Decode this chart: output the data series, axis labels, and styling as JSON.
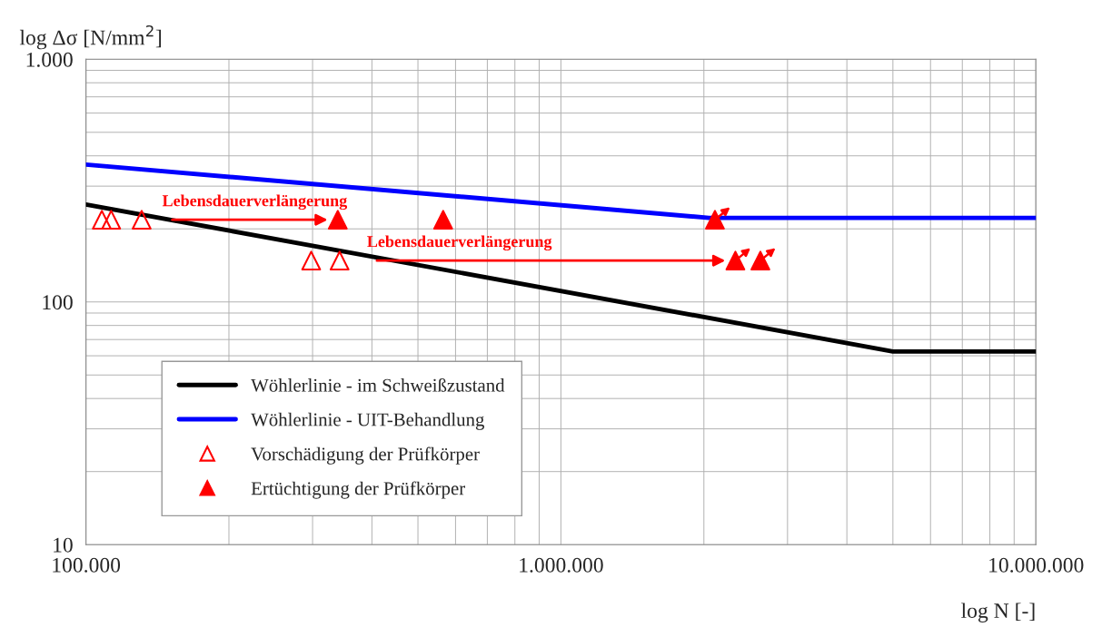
{
  "chart_data": {
    "type": "line",
    "xlabel": "log N [-]",
    "ylabel": "log Δσ [N/mm$^{2}$]",
    "log": "xy",
    "xlim": [
      100000,
      10000000
    ],
    "ylim": [
      10,
      1000
    ],
    "xticks": [
      {
        "value": 100000,
        "label": "100.000"
      },
      {
        "value": 1000000,
        "label": "1.000.000"
      },
      {
        "value": 10000000,
        "label": "10.000.000"
      }
    ],
    "yticks": [
      10,
      100,
      {
        "value": 1000,
        "label": "1.000"
      }
    ],
    "grid": true,
    "legend": "bottom left",
    "series": [
      {
        "name": "Wöhlerlinie - im Schweißzustand",
        "color": "#000000",
        "marker": "none",
        "x": [
          100000,
          5000000,
          10000000
        ],
        "values": [
          252,
          62.5,
          62.5
        ]
      },
      {
        "name": "Wöhlerlinie - UIT-Behandlung",
        "color": "#0000ff",
        "marker": "none",
        "x": [
          100000,
          2050000,
          10000000
        ],
        "values": [
          368,
          222,
          222
        ]
      },
      {
        "name": "Vorschädigung der Prüfkörper",
        "type": "scatter",
        "color": "#ff0000",
        "marker": "triangle-open",
        "x": [
          108000,
          113000,
          131000,
          298000,
          342000
        ],
        "values": [
          218,
          218,
          218,
          148,
          148
        ]
      },
      {
        "name": "Ertüchtigung der Prüfkörper",
        "type": "scatter",
        "color": "#ff0000",
        "marker": "triangle",
        "x": [
          339000,
          565000
        ],
        "values": [
          218,
          218
        ]
      },
      {
        "type": "scatter",
        "color": "#ff0000",
        "marker": "triangle-runout",
        "x": [
          2110000,
          2330000,
          2630000
        ],
        "values": [
          218,
          148,
          148
        ]
      }
    ],
    "annotations": [
      {
        "text": "Lebensdauerverlängerung",
        "x": 152000,
        "y": 218
      },
      {
        "text": "Lebensdauerverlängerung",
        "x": 410000,
        "y": 148
      }
    ]
  }
}
